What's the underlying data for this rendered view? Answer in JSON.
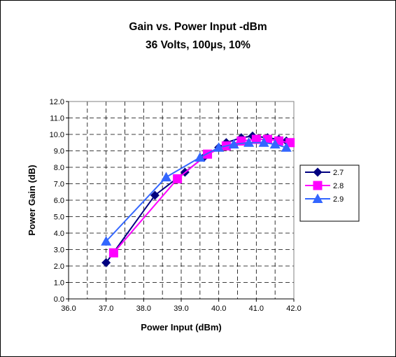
{
  "chart_data": {
    "type": "line",
    "title": "Gain vs. Power Input -dBm",
    "subtitle": "36 Volts, 100µs, 10%",
    "xlabel": "Power Input (dBm)",
    "ylabel": "Power Gain (dB)",
    "xlim": [
      36.0,
      42.0
    ],
    "ylim": [
      0.0,
      12.0
    ],
    "x_ticks": [
      "36.0",
      "37.0",
      "38.0",
      "39.0",
      "40.0",
      "41.0",
      "42.0"
    ],
    "y_ticks": [
      "0.0",
      "1.0",
      "2.0",
      "3.0",
      "4.0",
      "5.0",
      "6.0",
      "7.0",
      "8.0",
      "9.0",
      "10.0",
      "11.0",
      "12.0"
    ],
    "grid": true,
    "legend_position": "right",
    "series": [
      {
        "name": "2.7",
        "color": "#000080",
        "marker": "diamond",
        "points": [
          [
            37.0,
            2.2
          ],
          [
            38.3,
            6.3
          ],
          [
            39.1,
            7.7
          ],
          [
            39.6,
            8.6
          ],
          [
            40.0,
            9.2
          ],
          [
            40.2,
            9.5
          ],
          [
            40.6,
            9.8
          ],
          [
            40.9,
            9.9
          ],
          [
            41.3,
            9.8
          ],
          [
            41.6,
            9.7
          ],
          [
            41.8,
            9.6
          ]
        ]
      },
      {
        "name": "2.8",
        "color": "#ff00ff",
        "marker": "square",
        "points": [
          [
            37.2,
            2.8
          ],
          [
            38.9,
            7.3
          ],
          [
            39.7,
            8.8
          ],
          [
            40.2,
            9.3
          ],
          [
            40.6,
            9.6
          ],
          [
            41.0,
            9.7
          ],
          [
            41.3,
            9.7
          ],
          [
            41.6,
            9.6
          ],
          [
            41.9,
            9.5
          ]
        ]
      },
      {
        "name": "2.9",
        "color": "#3366ff",
        "marker": "triangle",
        "points": [
          [
            37.0,
            3.5
          ],
          [
            38.6,
            7.4
          ],
          [
            39.5,
            8.6
          ],
          [
            40.0,
            9.2
          ],
          [
            40.4,
            9.4
          ],
          [
            40.8,
            9.5
          ],
          [
            41.2,
            9.5
          ],
          [
            41.5,
            9.4
          ],
          [
            41.8,
            9.2
          ]
        ]
      }
    ]
  }
}
